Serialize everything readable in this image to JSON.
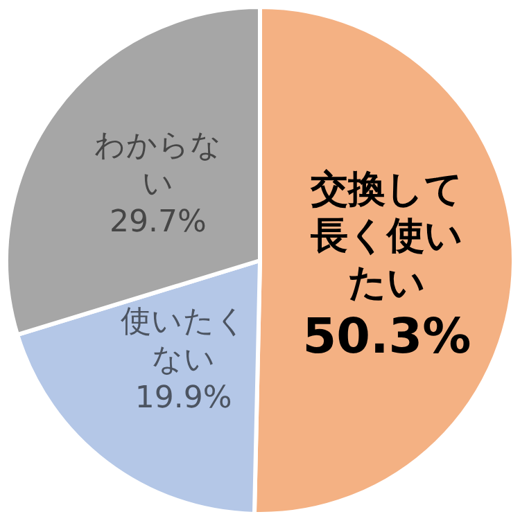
{
  "chart_data": {
    "type": "pie",
    "categories": [
      "交換して長く使いたい",
      "使いたくない",
      "わからない"
    ],
    "values": [
      50.3,
      19.9,
      29.7
    ],
    "colors": [
      "#f4b183",
      "#b4c7e7",
      "#a6a6a6"
    ],
    "value_labels": [
      "50.3%",
      "19.9%",
      "29.7%"
    ],
    "legend": false
  }
}
